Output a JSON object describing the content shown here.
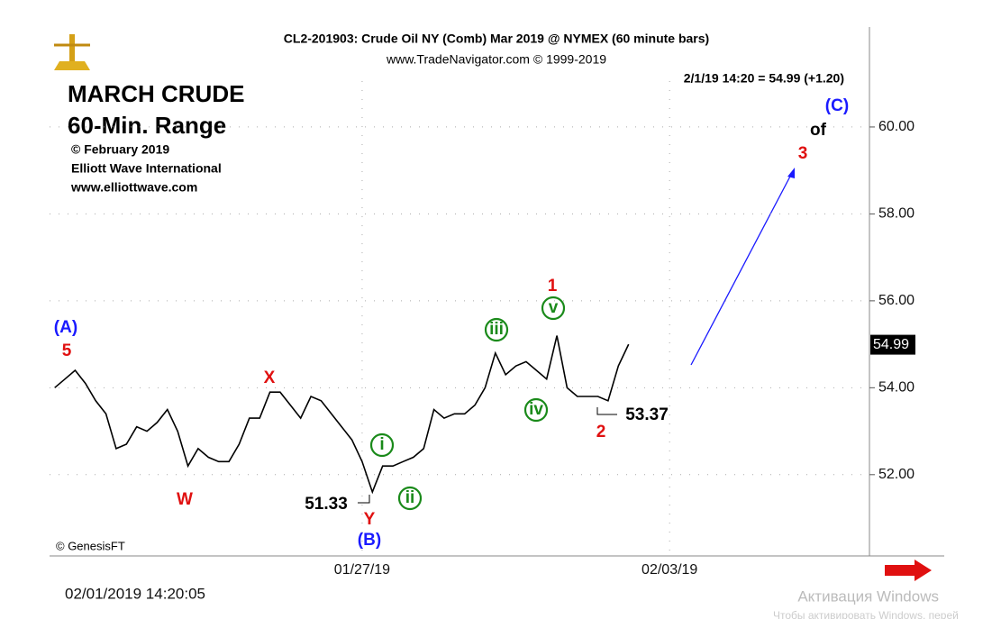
{
  "chart_data": {
    "type": "line",
    "title": "CL2-201903:  Crude Oil NY (Comb) Mar 2019 @ NYMEX  (60 minute bars)",
    "subtitle": "www.TradeNavigator.com © 1999-2019",
    "quote": "2/1/19 14:20 = 54.99 (+1.20)",
    "note_lines": [
      "MARCH CRUDE",
      "60-Min. Range",
      "© February 2019",
      "Elliott Wave International",
      "www.elliottwave.com"
    ],
    "source": "© GenesisFT",
    "timestamp": "02/01/2019 14:20:05",
    "watermark": [
      "Активация Windows",
      "Чтобы активировать Windows, перей"
    ],
    "color": "#000000",
    "last_value": 54.99,
    "categories": [
      null,
      null,
      null,
      null,
      null,
      null,
      null,
      null,
      null,
      null,
      null,
      null,
      null,
      null,
      null,
      null,
      null,
      null,
      null,
      null,
      null,
      null,
      null,
      null,
      null,
      null,
      null,
      null,
      null,
      null,
      "01/27/19",
      null,
      null,
      null,
      null,
      null,
      null,
      null,
      null,
      null,
      null,
      null,
      null,
      null,
      null,
      null,
      null,
      null,
      null,
      null,
      null,
      null,
      null,
      null,
      null,
      null,
      null,
      null,
      null,
      null,
      "02/03/19",
      null,
      null,
      null,
      null,
      null,
      null,
      null,
      null,
      null,
      null,
      null,
      null,
      null,
      null,
      null,
      null,
      null,
      null,
      null
    ],
    "values": [
      54.0,
      54.2,
      54.4,
      54.1,
      53.7,
      53.4,
      52.6,
      52.7,
      53.1,
      53.0,
      53.2,
      53.5,
      53.0,
      52.2,
      52.6,
      52.4,
      52.3,
      52.3,
      52.7,
      53.3,
      53.3,
      53.9,
      53.9,
      53.6,
      53.3,
      53.8,
      53.7,
      53.4,
      53.1,
      52.8,
      52.3,
      51.6,
      52.2,
      52.2,
      52.3,
      52.4,
      52.6,
      53.5,
      53.3,
      53.4,
      53.4,
      53.6,
      54.0,
      54.8,
      54.3,
      54.5,
      54.6,
      54.4,
      54.2,
      55.2,
      54.0,
      53.8,
      53.8,
      53.8,
      53.7,
      54.5,
      55.0,
      null,
      null,
      null,
      null,
      null,
      null,
      null,
      null,
      null,
      null,
      null,
      null,
      null,
      null,
      null,
      null,
      null,
      null,
      null,
      null,
      null,
      null,
      null
    ],
    "ylim": [
      50.13,
      62.3
    ],
    "yticks": [
      {
        "value": 52,
        "label": "52.00"
      },
      {
        "value": 54,
        "label": "54.00"
      },
      {
        "value": 56,
        "label": "56.00"
      },
      {
        "value": 58,
        "label": "58.00"
      },
      {
        "value": 60,
        "label": "60.00"
      }
    ],
    "grid": true,
    "annotations": [
      {
        "text": "(A)",
        "color": "#1a1aff"
      },
      {
        "text": "5",
        "color": "#e01010"
      },
      {
        "text": "X",
        "color": "#e01010"
      },
      {
        "text": "W",
        "color": "#e01010"
      },
      {
        "text": "51.33",
        "color": "#000000"
      },
      {
        "text": "Y",
        "color": "#e01010"
      },
      {
        "text": "(B)",
        "color": "#1a1aff"
      },
      {
        "text": "i",
        "color": "#1a8a1a"
      },
      {
        "text": "ii",
        "color": "#1a8a1a"
      },
      {
        "text": "iii",
        "color": "#1a8a1a"
      },
      {
        "text": "iv",
        "color": "#1a8a1a"
      },
      {
        "text": "v",
        "color": "#1a8a1a"
      },
      {
        "text": "1",
        "color": "#e01010"
      },
      {
        "text": "2",
        "color": "#e01010"
      },
      {
        "text": "53.37",
        "color": "#000000"
      },
      {
        "text": "3",
        "color": "#e01010"
      },
      {
        "text": "of",
        "color": "#000000"
      },
      {
        "text": "(C)",
        "color": "#1a1aff"
      }
    ]
  }
}
